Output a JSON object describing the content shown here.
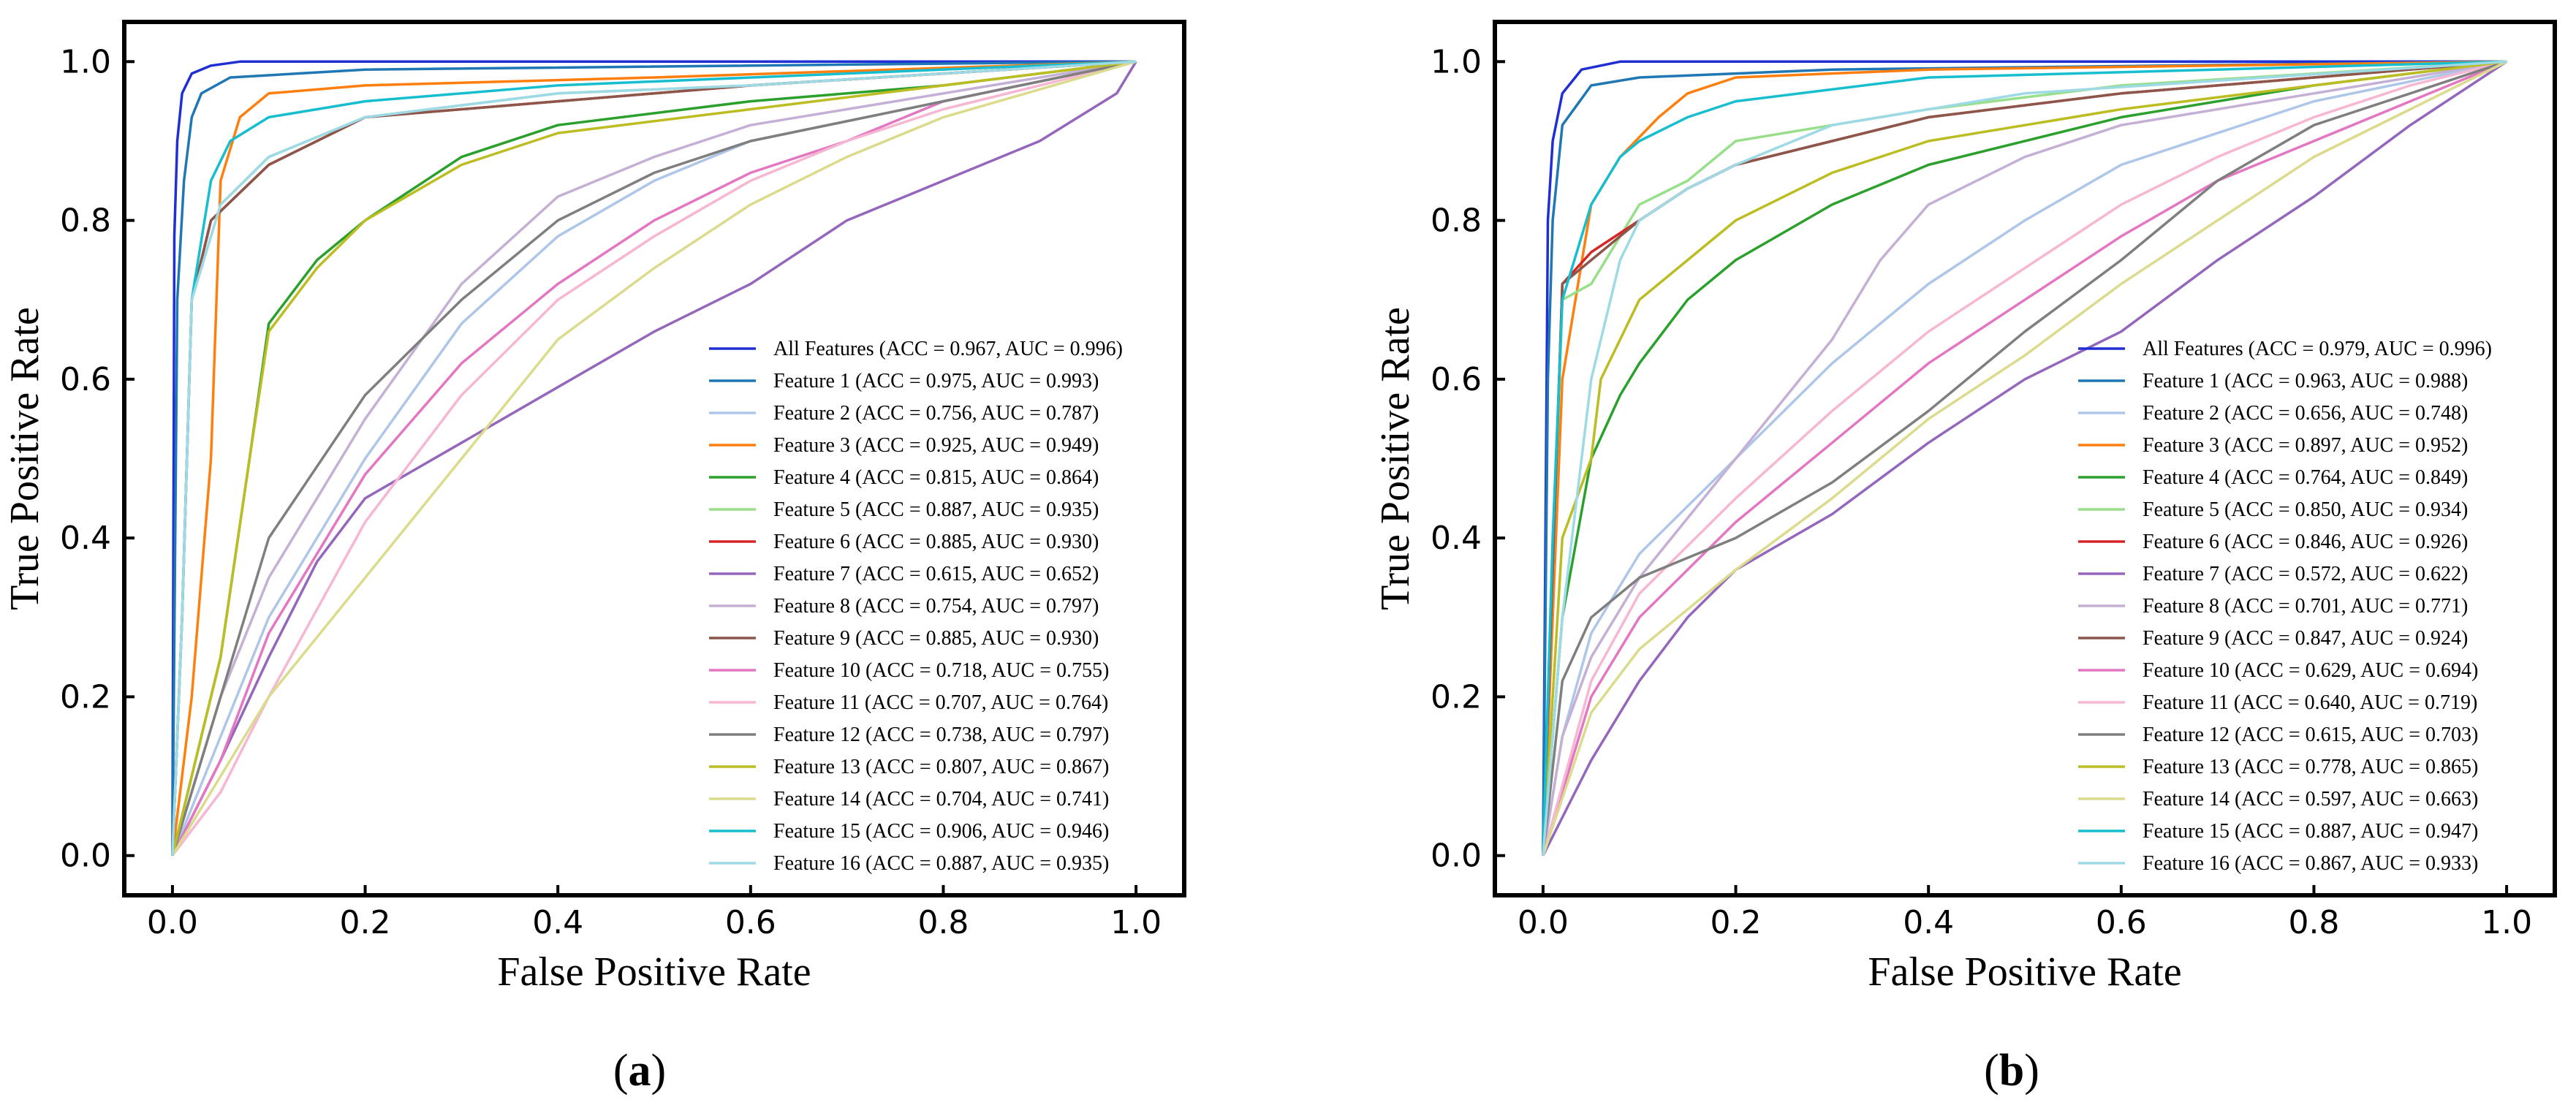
{
  "chart_data": [
    {
      "type": "line",
      "panel": "a",
      "panel_label": "a",
      "xlabel": "False Positive Rate",
      "ylabel": "True Positive Rate",
      "xlim": [
        -0.05,
        1.05
      ],
      "ylim": [
        -0.05,
        1.05
      ],
      "xticks": [
        0.0,
        0.2,
        0.4,
        0.6,
        0.8,
        1.0
      ],
      "yticks": [
        0.0,
        0.2,
        0.4,
        0.6,
        0.8,
        1.0
      ],
      "xtick_labels": [
        "0.0",
        "0.2",
        "0.4",
        "0.6",
        "0.8",
        "1.0"
      ],
      "ytick_labels": [
        "0.0",
        "0.2",
        "0.4",
        "0.6",
        "0.8",
        "1.0"
      ],
      "legend_position": "lower-right",
      "series": [
        {
          "name": "All Features (ACC = 0.967, AUC = 0.996)",
          "color": "#1f2fd4",
          "x": [
            0,
            0.002,
            0.005,
            0.01,
            0.02,
            0.04,
            0.07,
            1
          ],
          "y": [
            0,
            0.78,
            0.9,
            0.96,
            0.985,
            0.995,
            1,
            1
          ]
        },
        {
          "name": "Feature 1 (ACC = 0.975, AUC = 0.993)",
          "color": "#1f77b4",
          "x": [
            0,
            0.005,
            0.012,
            0.02,
            0.03,
            0.06,
            0.2,
            1
          ],
          "y": [
            0,
            0.7,
            0.85,
            0.93,
            0.96,
            0.98,
            0.99,
            1
          ]
        },
        {
          "name": "Feature 2 (ACC = 0.756, AUC = 0.787)",
          "color": "#aec7e8",
          "x": [
            0,
            0.05,
            0.1,
            0.2,
            0.3,
            0.4,
            0.5,
            0.6,
            0.8,
            1
          ],
          "y": [
            0,
            0.15,
            0.3,
            0.5,
            0.67,
            0.78,
            0.85,
            0.9,
            0.95,
            1
          ]
        },
        {
          "name": "Feature 3 (ACC = 0.925, AUC = 0.949)",
          "color": "#ff7f0e",
          "x": [
            0,
            0.02,
            0.04,
            0.05,
            0.07,
            0.1,
            0.2,
            0.5,
            1
          ],
          "y": [
            0,
            0.2,
            0.5,
            0.85,
            0.93,
            0.96,
            0.97,
            0.98,
            1
          ]
        },
        {
          "name": "Feature 4 (ACC = 0.815, AUC = 0.864)",
          "color": "#2ca02c",
          "x": [
            0,
            0.05,
            0.08,
            0.1,
            0.15,
            0.2,
            0.3,
            0.4,
            0.6,
            0.8,
            1
          ],
          "y": [
            0,
            0.25,
            0.5,
            0.67,
            0.75,
            0.8,
            0.88,
            0.92,
            0.95,
            0.97,
            1
          ]
        },
        {
          "name": "Feature 5 (ACC = 0.887, AUC = 0.935)",
          "color": "#98df8a",
          "x": [
            0,
            0.01,
            0.02,
            0.05,
            0.1,
            0.2,
            0.4,
            0.6,
            1
          ],
          "y": [
            0,
            0.3,
            0.7,
            0.82,
            0.88,
            0.93,
            0.96,
            0.97,
            1
          ]
        },
        {
          "name": "Feature 6 (ACC = 0.885, AUC = 0.930)",
          "color": "#d62728",
          "x": [
            0,
            0.01,
            0.02,
            0.04,
            0.1,
            0.2,
            0.4,
            0.6,
            1
          ],
          "y": [
            0,
            0.3,
            0.7,
            0.8,
            0.87,
            0.93,
            0.95,
            0.97,
            1
          ]
        },
        {
          "name": "Feature 7 (ACC = 0.615, AUC = 0.652)",
          "color": "#9467bd",
          "x": [
            0,
            0.05,
            0.1,
            0.15,
            0.2,
            0.3,
            0.4,
            0.5,
            0.6,
            0.7,
            0.8,
            0.9,
            0.98,
            1
          ],
          "y": [
            0,
            0.12,
            0.25,
            0.37,
            0.45,
            0.52,
            0.59,
            0.66,
            0.72,
            0.8,
            0.85,
            0.9,
            0.96,
            1
          ]
        },
        {
          "name": "Feature 8 (ACC = 0.754, AUC = 0.797)",
          "color": "#c5b0d5",
          "x": [
            0,
            0.05,
            0.1,
            0.2,
            0.3,
            0.4,
            0.5,
            0.6,
            0.8,
            1
          ],
          "y": [
            0,
            0.2,
            0.35,
            0.55,
            0.72,
            0.83,
            0.88,
            0.92,
            0.96,
            1
          ]
        },
        {
          "name": "Feature 9 (ACC = 0.885, AUC = 0.930)",
          "color": "#8c564b",
          "x": [
            0,
            0.01,
            0.02,
            0.04,
            0.1,
            0.2,
            0.4,
            0.6,
            1
          ],
          "y": [
            0,
            0.3,
            0.7,
            0.8,
            0.87,
            0.93,
            0.95,
            0.97,
            1
          ]
        },
        {
          "name": "Feature 10 (ACC = 0.718, AUC = 0.755)",
          "color": "#e377c2",
          "x": [
            0,
            0.05,
            0.1,
            0.2,
            0.3,
            0.4,
            0.5,
            0.6,
            0.7,
            0.8,
            1
          ],
          "y": [
            0,
            0.12,
            0.28,
            0.48,
            0.62,
            0.72,
            0.8,
            0.86,
            0.9,
            0.95,
            1
          ]
        },
        {
          "name": "Feature 11 (ACC = 0.707, AUC = 0.764)",
          "color": "#f7b6d2",
          "x": [
            0,
            0.05,
            0.1,
            0.2,
            0.3,
            0.4,
            0.5,
            0.6,
            0.7,
            0.8,
            1
          ],
          "y": [
            0,
            0.08,
            0.2,
            0.42,
            0.58,
            0.7,
            0.78,
            0.85,
            0.9,
            0.94,
            1
          ]
        },
        {
          "name": "Feature 12 (ACC = 0.738, AUC = 0.797)",
          "color": "#7f7f7f",
          "x": [
            0,
            0.05,
            0.1,
            0.2,
            0.3,
            0.4,
            0.5,
            0.6,
            0.8,
            1
          ],
          "y": [
            0,
            0.2,
            0.4,
            0.58,
            0.7,
            0.8,
            0.86,
            0.9,
            0.95,
            1
          ]
        },
        {
          "name": "Feature 13 (ACC = 0.807, AUC = 0.867)",
          "color": "#bcbd22",
          "x": [
            0,
            0.05,
            0.08,
            0.1,
            0.15,
            0.2,
            0.3,
            0.4,
            0.6,
            0.8,
            1
          ],
          "y": [
            0,
            0.25,
            0.5,
            0.66,
            0.74,
            0.8,
            0.87,
            0.91,
            0.94,
            0.97,
            1
          ]
        },
        {
          "name": "Feature 14 (ACC = 0.704, AUC = 0.741)",
          "color": "#dbdb8d",
          "x": [
            0,
            0.05,
            0.1,
            0.2,
            0.3,
            0.4,
            0.5,
            0.6,
            0.7,
            0.8,
            1
          ],
          "y": [
            0,
            0.1,
            0.2,
            0.35,
            0.5,
            0.65,
            0.74,
            0.82,
            0.88,
            0.93,
            1
          ]
        },
        {
          "name": "Feature 15 (ACC = 0.906, AUC = 0.946)",
          "color": "#17becf",
          "x": [
            0,
            0.01,
            0.02,
            0.04,
            0.06,
            0.1,
            0.2,
            0.4,
            1
          ],
          "y": [
            0,
            0.3,
            0.7,
            0.85,
            0.9,
            0.93,
            0.95,
            0.97,
            1
          ]
        },
        {
          "name": "Feature 16 (ACC = 0.887, AUC = 0.935)",
          "color": "#9edae5",
          "x": [
            0,
            0.01,
            0.02,
            0.05,
            0.1,
            0.2,
            0.4,
            0.6,
            1
          ],
          "y": [
            0,
            0.3,
            0.7,
            0.82,
            0.88,
            0.93,
            0.96,
            0.97,
            1
          ]
        }
      ]
    },
    {
      "type": "line",
      "panel": "b",
      "panel_label": "b",
      "xlabel": "False Positive Rate",
      "ylabel": "True Positive Rate",
      "xlim": [
        -0.05,
        1.05
      ],
      "ylim": [
        -0.05,
        1.05
      ],
      "xticks": [
        0.0,
        0.2,
        0.4,
        0.6,
        0.8,
        1.0
      ],
      "yticks": [
        0.0,
        0.2,
        0.4,
        0.6,
        0.8,
        1.0
      ],
      "xtick_labels": [
        "0.0",
        "0.2",
        "0.4",
        "0.6",
        "0.8",
        "1.0"
      ],
      "ytick_labels": [
        "0.0",
        "0.2",
        "0.4",
        "0.6",
        "0.8",
        "1.0"
      ],
      "legend_position": "lower-right",
      "series": [
        {
          "name": "All Features (ACC = 0.979, AUC = 0.996)",
          "color": "#1f2fd4",
          "x": [
            0,
            0.005,
            0.01,
            0.02,
            0.04,
            0.08,
            1
          ],
          "y": [
            0,
            0.8,
            0.9,
            0.96,
            0.99,
            1,
            1
          ]
        },
        {
          "name": "Feature 1 (ACC = 0.963, AUC = 0.988)",
          "color": "#1f77b4",
          "x": [
            0,
            0.005,
            0.01,
            0.02,
            0.05,
            0.1,
            0.3,
            1
          ],
          "y": [
            0,
            0.6,
            0.8,
            0.92,
            0.97,
            0.98,
            0.99,
            1
          ]
        },
        {
          "name": "Feature 2 (ACC = 0.656, AUC = 0.748)",
          "color": "#aec7e8",
          "x": [
            0,
            0.02,
            0.05,
            0.1,
            0.2,
            0.3,
            0.4,
            0.5,
            0.6,
            0.8,
            1
          ],
          "y": [
            0,
            0.15,
            0.28,
            0.38,
            0.5,
            0.62,
            0.72,
            0.8,
            0.87,
            0.95,
            1
          ]
        },
        {
          "name": "Feature 3 (ACC = 0.897, AUC = 0.952)",
          "color": "#ff7f0e",
          "x": [
            0,
            0.02,
            0.05,
            0.08,
            0.12,
            0.15,
            0.2,
            0.4,
            1
          ],
          "y": [
            0,
            0.6,
            0.82,
            0.88,
            0.93,
            0.96,
            0.98,
            0.99,
            1
          ]
        },
        {
          "name": "Feature 4 (ACC = 0.764, AUC = 0.849)",
          "color": "#2ca02c",
          "x": [
            0,
            0.02,
            0.05,
            0.08,
            0.1,
            0.15,
            0.2,
            0.3,
            0.4,
            0.6,
            0.8,
            1
          ],
          "y": [
            0,
            0.3,
            0.5,
            0.58,
            0.62,
            0.7,
            0.75,
            0.82,
            0.87,
            0.93,
            0.97,
            1
          ]
        },
        {
          "name": "Feature 5 (ACC = 0.850, AUC = 0.934)",
          "color": "#98df8a",
          "x": [
            0,
            0.02,
            0.05,
            0.08,
            0.1,
            0.15,
            0.2,
            0.4,
            0.6,
            1
          ],
          "y": [
            0,
            0.7,
            0.72,
            0.78,
            0.82,
            0.85,
            0.9,
            0.94,
            0.97,
            1
          ]
        },
        {
          "name": "Feature 6 (ACC = 0.846, AUC = 0.926)",
          "color": "#d62728",
          "x": [
            0,
            0.02,
            0.05,
            0.1,
            0.15,
            0.2,
            0.3,
            0.4,
            0.6,
            0.8,
            1
          ],
          "y": [
            0,
            0.72,
            0.76,
            0.8,
            0.84,
            0.87,
            0.9,
            0.93,
            0.96,
            0.98,
            1
          ]
        },
        {
          "name": "Feature 7 (ACC = 0.572, AUC = 0.622)",
          "color": "#9467bd",
          "x": [
            0,
            0.05,
            0.1,
            0.15,
            0.2,
            0.3,
            0.4,
            0.5,
            0.6,
            0.7,
            0.8,
            0.9,
            1
          ],
          "y": [
            0,
            0.12,
            0.22,
            0.3,
            0.36,
            0.43,
            0.52,
            0.6,
            0.66,
            0.75,
            0.83,
            0.92,
            1
          ]
        },
        {
          "name": "Feature 8 (ACC = 0.701, AUC = 0.771)",
          "color": "#c5b0d5",
          "x": [
            0,
            0.02,
            0.05,
            0.1,
            0.2,
            0.3,
            0.35,
            0.4,
            0.5,
            0.6,
            0.8,
            1
          ],
          "y": [
            0,
            0.15,
            0.25,
            0.35,
            0.5,
            0.65,
            0.75,
            0.82,
            0.88,
            0.92,
            0.96,
            1
          ]
        },
        {
          "name": "Feature 9 (ACC = 0.847, AUC = 0.924)",
          "color": "#8c564b",
          "x": [
            0,
            0.02,
            0.05,
            0.1,
            0.15,
            0.2,
            0.3,
            0.4,
            0.6,
            0.8,
            1
          ],
          "y": [
            0,
            0.72,
            0.75,
            0.8,
            0.84,
            0.87,
            0.9,
            0.93,
            0.96,
            0.98,
            1
          ]
        },
        {
          "name": "Feature 10 (ACC = 0.629, AUC = 0.694)",
          "color": "#e377c2",
          "x": [
            0,
            0.05,
            0.1,
            0.2,
            0.3,
            0.4,
            0.5,
            0.6,
            0.7,
            0.8,
            0.9,
            1
          ],
          "y": [
            0,
            0.2,
            0.3,
            0.42,
            0.52,
            0.62,
            0.7,
            0.78,
            0.85,
            0.9,
            0.95,
            1
          ]
        },
        {
          "name": "Feature 11 (ACC = 0.640, AUC = 0.719)",
          "color": "#f7b6d2",
          "x": [
            0,
            0.05,
            0.1,
            0.2,
            0.3,
            0.4,
            0.5,
            0.6,
            0.7,
            0.8,
            0.9,
            1
          ],
          "y": [
            0,
            0.22,
            0.33,
            0.45,
            0.56,
            0.66,
            0.74,
            0.82,
            0.88,
            0.93,
            0.97,
            1
          ]
        },
        {
          "name": "Feature 12 (ACC = 0.615, AUC = 0.703)",
          "color": "#7f7f7f",
          "x": [
            0,
            0.02,
            0.05,
            0.1,
            0.2,
            0.3,
            0.4,
            0.5,
            0.6,
            0.7,
            0.8,
            0.9,
            1
          ],
          "y": [
            0,
            0.22,
            0.3,
            0.35,
            0.4,
            0.47,
            0.56,
            0.66,
            0.75,
            0.85,
            0.92,
            0.96,
            1
          ]
        },
        {
          "name": "Feature 13 (ACC = 0.778, AUC = 0.865)",
          "color": "#bcbd22",
          "x": [
            0,
            0.02,
            0.05,
            0.06,
            0.08,
            0.1,
            0.15,
            0.2,
            0.3,
            0.4,
            0.6,
            0.8,
            1
          ],
          "y": [
            0,
            0.4,
            0.5,
            0.6,
            0.65,
            0.7,
            0.75,
            0.8,
            0.86,
            0.9,
            0.94,
            0.97,
            1
          ]
        },
        {
          "name": "Feature 14 (ACC = 0.597, AUC = 0.663)",
          "color": "#dbdb8d",
          "x": [
            0,
            0.05,
            0.1,
            0.2,
            0.3,
            0.4,
            0.5,
            0.6,
            0.7,
            0.8,
            0.9,
            1
          ],
          "y": [
            0,
            0.18,
            0.26,
            0.36,
            0.45,
            0.55,
            0.63,
            0.72,
            0.8,
            0.88,
            0.94,
            1
          ]
        },
        {
          "name": "Feature 15 (ACC = 0.887, AUC = 0.947)",
          "color": "#17becf",
          "x": [
            0,
            0.01,
            0.02,
            0.05,
            0.08,
            0.1,
            0.15,
            0.2,
            0.4,
            1
          ],
          "y": [
            0,
            0.4,
            0.7,
            0.82,
            0.88,
            0.9,
            0.93,
            0.95,
            0.98,
            1
          ]
        },
        {
          "name": "Feature 16 (ACC = 0.867, AUC = 0.933)",
          "color": "#9edae5",
          "x": [
            0,
            0.02,
            0.05,
            0.08,
            0.1,
            0.15,
            0.2,
            0.3,
            0.5,
            1
          ],
          "y": [
            0,
            0.3,
            0.6,
            0.75,
            0.8,
            0.84,
            0.87,
            0.92,
            0.96,
            1
          ]
        }
      ]
    }
  ]
}
